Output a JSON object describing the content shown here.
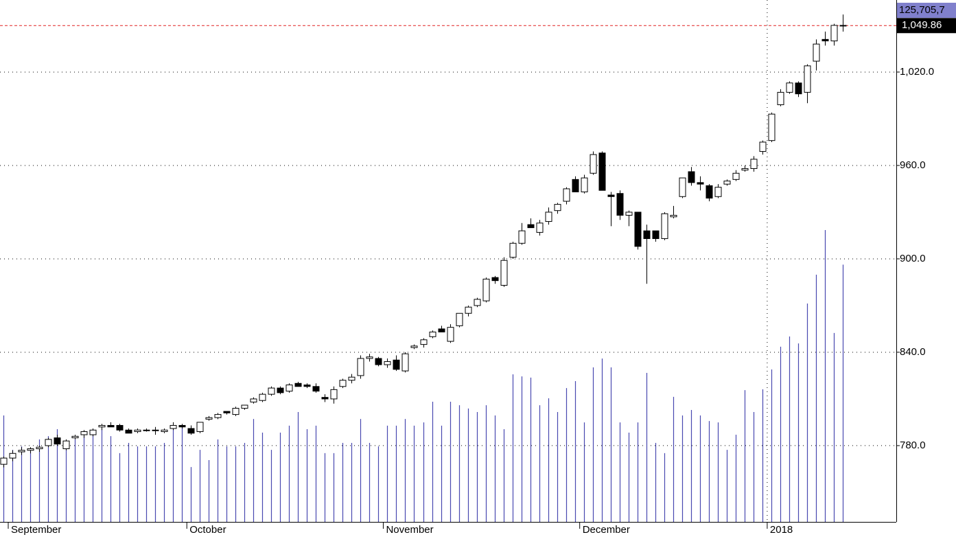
{
  "chart_data": {
    "type": "candlestick",
    "categories": [
      null,
      "September",
      null,
      null,
      null,
      null,
      null,
      null,
      null,
      null,
      null,
      null,
      null,
      null,
      null,
      null,
      null,
      null,
      null,
      null,
      null,
      "October",
      null,
      null,
      null,
      null,
      null,
      null,
      null,
      null,
      null,
      null,
      null,
      null,
      null,
      null,
      null,
      null,
      null,
      null,
      null,
      null,
      null,
      "November",
      null,
      null,
      null,
      null,
      null,
      null,
      null,
      null,
      null,
      null,
      null,
      null,
      null,
      null,
      null,
      null,
      null,
      null,
      null,
      null,
      null,
      "December",
      null,
      null,
      null,
      null,
      null,
      null,
      null,
      null,
      null,
      null,
      null,
      null,
      null,
      null,
      null,
      null,
      null,
      null,
      null,
      null,
      "2018",
      null,
      null,
      null,
      null,
      null,
      null,
      null,
      null
    ],
    "open": [
      768,
      772,
      776,
      777,
      778,
      780,
      785,
      778,
      785,
      787,
      787,
      792,
      793,
      793,
      790,
      789,
      790,
      790,
      789,
      791,
      793,
      791,
      789,
      797,
      798,
      802,
      800,
      804,
      808,
      809,
      813,
      817,
      815,
      820,
      819,
      818,
      811,
      810,
      818,
      822,
      825,
      836,
      836,
      832,
      835,
      828,
      843,
      845,
      850,
      855,
      847,
      857,
      865,
      870,
      873,
      888,
      883,
      901,
      910,
      922,
      917,
      924,
      931,
      937,
      951,
      943,
      955,
      968,
      941,
      942,
      928,
      930,
      918,
      918,
      913,
      927,
      940,
      956,
      949,
      947,
      940,
      948,
      951,
      957,
      958,
      969,
      976,
      999,
      1007,
      1013,
      1007,
      1027,
      1041,
      1040,
      1050
    ],
    "high": [
      773,
      777,
      779,
      779,
      780,
      785,
      787,
      784,
      787,
      790,
      791,
      794,
      795,
      794,
      791,
      791,
      791,
      792,
      791,
      795,
      794,
      793,
      795,
      799,
      801,
      802,
      805,
      806,
      811,
      814,
      818,
      818,
      820,
      821,
      820,
      820,
      813,
      818,
      823,
      826,
      838,
      839,
      837,
      836,
      838,
      840,
      845,
      849,
      854,
      857,
      858,
      865,
      870,
      875,
      888,
      889,
      901,
      911,
      923,
      926,
      925,
      933,
      936,
      946,
      953,
      954,
      969,
      969,
      943,
      944,
      931,
      930,
      922,
      918,
      930,
      934,
      952,
      959,
      953,
      948,
      948,
      951,
      957,
      960,
      966,
      976,
      994,
      1009,
      1014,
      1014,
      1025,
      1041,
      1046,
      1051,
      1057
    ],
    "low": [
      766,
      770,
      774,
      775,
      776,
      779,
      780,
      777,
      784,
      785,
      786,
      790,
      792,
      789,
      788,
      788,
      789,
      787,
      788,
      790,
      791,
      787,
      788,
      796,
      797,
      800,
      799,
      803,
      807,
      808,
      812,
      813,
      814,
      818,
      817,
      814,
      808,
      807,
      817,
      820,
      823,
      834,
      831,
      830,
      828,
      827,
      842,
      843,
      849,
      853,
      846,
      856,
      863,
      869,
      872,
      884,
      882,
      900,
      909,
      920,
      915,
      922,
      929,
      935,
      943,
      942,
      954,
      944,
      921,
      925,
      921,
      906,
      884,
      911,
      912,
      926,
      939,
      947,
      944,
      937,
      939,
      947,
      950,
      956,
      956,
      967,
      975,
      998,
      1006,
      1004,
      1000,
      1021,
      1037,
      1037,
      1046
    ],
    "close": [
      772,
      775,
      777,
      778,
      779,
      784,
      781,
      783,
      786,
      789,
      790,
      793,
      792,
      790,
      788,
      790,
      790,
      790,
      790,
      793,
      792,
      788,
      795,
      798,
      800,
      801,
      804,
      806,
      810,
      813,
      817,
      814,
      819,
      818,
      818,
      815,
      810,
      816,
      822,
      824,
      836,
      837,
      832,
      834,
      829,
      839,
      844,
      848,
      853,
      853,
      856,
      865,
      869,
      874,
      887,
      886,
      899,
      910,
      918,
      920,
      923,
      930,
      935,
      945,
      943,
      952,
      967,
      944,
      940,
      928,
      930,
      908,
      913,
      913,
      929,
      928,
      952,
      949,
      948,
      939,
      946,
      950,
      955,
      958,
      964,
      975,
      993,
      1007,
      1013,
      1006,
      1024,
      1038,
      1040,
      1050,
      1049.86
    ],
    "volume": [
      52000000,
      35200000,
      36900000,
      35200000,
      40300000,
      41900000,
      45300000,
      38600000,
      40300000,
      41900000,
      45300000,
      45300000,
      41900000,
      33600000,
      38600000,
      36900000,
      36900000,
      36900000,
      38600000,
      45300000,
      47000000,
      26800000,
      35200000,
      30200000,
      40300000,
      36900000,
      36900000,
      38600000,
      50300000,
      43600000,
      35200000,
      43600000,
      47000000,
      53700000,
      45300000,
      47000000,
      33600000,
      33600000,
      38600000,
      38600000,
      50300000,
      38600000,
      36900000,
      47000000,
      47000000,
      50300000,
      47000000,
      48600000,
      58700000,
      47000000,
      58700000,
      57000000,
      55400000,
      53700000,
      57000000,
      52000000,
      45300000,
      72100000,
      71100000,
      70500000,
      57000000,
      60400000,
      53700000,
      65400000,
      68800000,
      48600000,
      75500000,
      79800000,
      75500000,
      48600000,
      43600000,
      48600000,
      72800000,
      38600000,
      33600000,
      61100000,
      52000000,
      54700000,
      52000000,
      49300000,
      48600000,
      35200000,
      42600000,
      64400000,
      53700000,
      64800000,
      74500000,
      85600000,
      90600000,
      87200000,
      106700000,
      120800000,
      142600000,
      92300000,
      125705700
    ],
    "last_volume_label": "125,705,7",
    "last_close_label": "1,049.86",
    "ylim": [
      731,
      1066.3
    ],
    "yticks": [
      {
        "value": 780,
        "label": "780.0"
      },
      {
        "value": 840,
        "label": "840.0"
      },
      {
        "value": 900,
        "label": "900.0"
      },
      {
        "value": 960,
        "label": "960.0"
      },
      {
        "value": 1020,
        "label": "1,020.0"
      }
    ],
    "y2lim": [
      0,
      255000000
    ],
    "grid": true,
    "up_color": "#ffffff",
    "down_color": "#000000",
    "volume_color": "#4848b0",
    "last_line_color": "#e02020"
  }
}
